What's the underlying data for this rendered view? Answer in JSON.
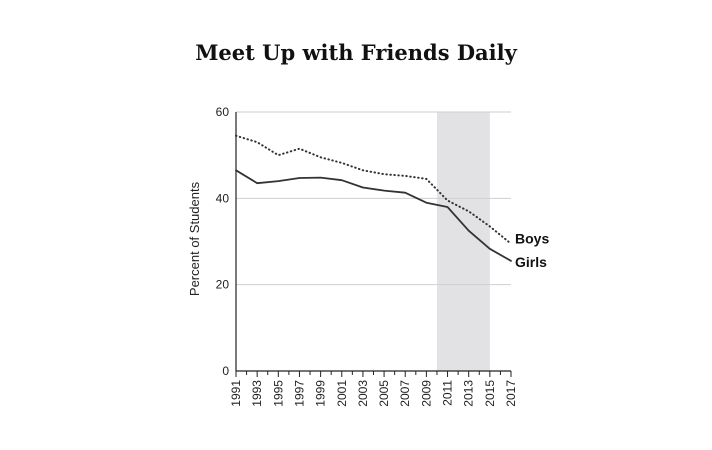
{
  "chart_data": {
    "type": "line",
    "title": "Meet Up with Friends Daily",
    "xlabel": "",
    "ylabel": "Percent of Students",
    "xlim": [
      1991,
      2017
    ],
    "ylim": [
      0,
      60
    ],
    "yticks": [
      0,
      20,
      40,
      60
    ],
    "xticks": [
      1991,
      1993,
      1995,
      1997,
      1999,
      2001,
      2003,
      2005,
      2007,
      2009,
      2011,
      2013,
      2015,
      2017
    ],
    "grid": "horizontal",
    "highlight_range": [
      2010,
      2015
    ],
    "series": [
      {
        "name": "Boys",
        "style": "dotted",
        "color": "#333333",
        "x": [
          1991,
          1993,
          1995,
          1997,
          1999,
          2001,
          2003,
          2005,
          2007,
          2009,
          2011,
          2013,
          2015,
          2017
        ],
        "y": [
          54.5,
          53.0,
          50.0,
          51.5,
          49.5,
          48.2,
          46.5,
          45.6,
          45.2,
          44.5,
          39.5,
          37.0,
          33.5,
          29.5
        ]
      },
      {
        "name": "Girls",
        "style": "solid",
        "color": "#333333",
        "x": [
          1991,
          1993,
          1995,
          1997,
          1999,
          2001,
          2003,
          2005,
          2007,
          2009,
          2011,
          2013,
          2015,
          2017
        ],
        "y": [
          46.5,
          43.5,
          44.0,
          44.7,
          44.8,
          44.2,
          42.5,
          41.8,
          41.3,
          39.0,
          38.0,
          32.5,
          28.3,
          25.5
        ]
      }
    ]
  }
}
